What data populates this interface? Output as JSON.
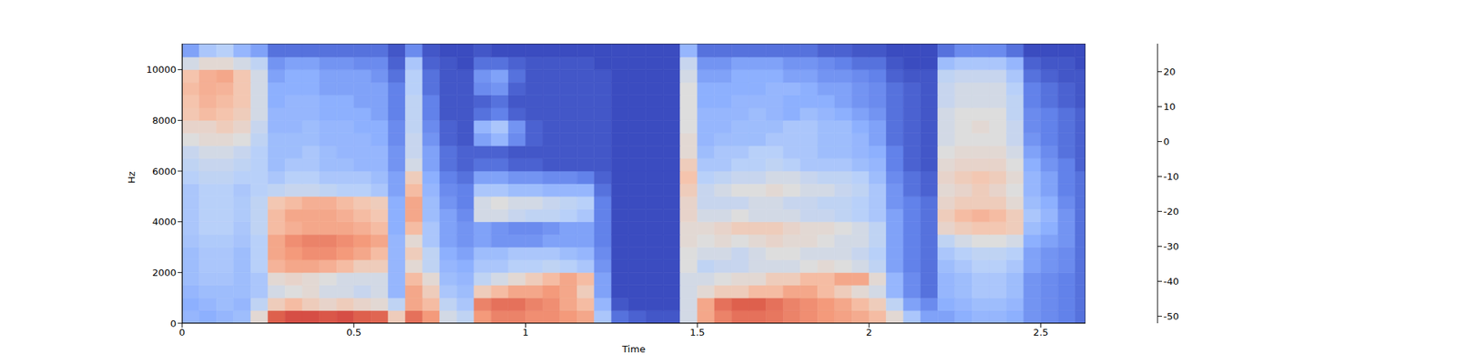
{
  "chart_data": {
    "type": "heatmap",
    "xlabel": "Time",
    "ylabel": "Hz",
    "xlim": [
      0,
      2.63
    ],
    "ylim": [
      0,
      11025
    ],
    "xticks": [
      0,
      0.5,
      1,
      1.5,
      2,
      2.5
    ],
    "yticks": [
      0,
      2000,
      4000,
      6000,
      8000,
      10000
    ],
    "x_edges": [
      0,
      0.05,
      0.1,
      0.15,
      0.2,
      0.25,
      0.3,
      0.35,
      0.4,
      0.45,
      0.5,
      0.55,
      0.6,
      0.65,
      0.7,
      0.75,
      0.8,
      0.85,
      0.9,
      0.95,
      1,
      1.05,
      1.1,
      1.15,
      1.2,
      1.25,
      1.3,
      1.35,
      1.4,
      1.45,
      1.5,
      1.55,
      1.6,
      1.65,
      1.7,
      1.75,
      1.8,
      1.85,
      1.9,
      1.95,
      2,
      2.05,
      2.1,
      2.15,
      2.2,
      2.25,
      2.3,
      2.35,
      2.4,
      2.45,
      2.5,
      2.55,
      2.6,
      2.65
    ],
    "y_edges": [
      0,
      500,
      1000,
      1500,
      2000,
      2500,
      3000,
      3500,
      4000,
      4500,
      5000,
      5500,
      6000,
      6500,
      7000,
      7500,
      8000,
      8500,
      9000,
      9500,
      10000,
      10500,
      11025
    ],
    "z": [
      [
        -30,
        -32,
        -30,
        -28,
        -10,
        18,
        20,
        20,
        19,
        20,
        18,
        17,
        -5,
        15,
        8,
        -15,
        -20,
        8,
        12,
        12,
        10,
        10,
        8,
        5,
        -25,
        -45,
        -48,
        -50,
        -50,
        -15,
        5,
        12,
        15,
        15,
        14,
        12,
        10,
        8,
        6,
        4,
        0,
        -10,
        -25,
        -35,
        -35,
        -32,
        -30,
        -30,
        -32,
        -38,
        -40,
        -42,
        -45
      ],
      [
        -32,
        -30,
        -28,
        -30,
        -20,
        -5,
        0,
        -5,
        -8,
        -5,
        -8,
        -10,
        -20,
        5,
        0,
        -20,
        -25,
        12,
        15,
        15,
        12,
        10,
        5,
        0,
        -30,
        -50,
        -52,
        -52,
        -52,
        -15,
        5,
        15,
        18,
        18,
        15,
        12,
        10,
        8,
        5,
        0,
        -5,
        -20,
        -35,
        -40,
        -32,
        -30,
        -28,
        -28,
        -30,
        -38,
        -40,
        -42,
        -45
      ],
      [
        -30,
        -28,
        -28,
        -28,
        -25,
        -15,
        -12,
        -10,
        -15,
        -15,
        -18,
        -15,
        -30,
        5,
        -5,
        -25,
        -28,
        -5,
        0,
        5,
        5,
        8,
        5,
        -5,
        -35,
        -52,
        -52,
        -52,
        -52,
        -15,
        -10,
        -5,
        -5,
        0,
        0,
        5,
        5,
        0,
        -5,
        -10,
        -15,
        -30,
        -40,
        -45,
        -30,
        -28,
        -25,
        -25,
        -28,
        -38,
        -40,
        -42,
        -45
      ],
      [
        -28,
        -26,
        -26,
        -28,
        -25,
        -10,
        -8,
        -10,
        -12,
        -15,
        -15,
        -15,
        -30,
        0,
        -10,
        -28,
        -30,
        -20,
        -15,
        -10,
        -5,
        0,
        5,
        0,
        -35,
        -52,
        -52,
        -52,
        -52,
        -15,
        -15,
        -12,
        -10,
        -10,
        -5,
        -5,
        0,
        0,
        5,
        5,
        -10,
        -30,
        -40,
        -45,
        -30,
        -28,
        -25,
        -25,
        -28,
        -38,
        -40,
        -42,
        -45
      ],
      [
        -28,
        -25,
        -25,
        -28,
        -22,
        2,
        5,
        5,
        3,
        0,
        -5,
        -5,
        -30,
        -10,
        -20,
        -30,
        -32,
        -25,
        -25,
        -22,
        -22,
        -20,
        -22,
        -25,
        -38,
        -52,
        -52,
        -52,
        -52,
        -12,
        -20,
        -18,
        -18,
        -15,
        -15,
        -15,
        -12,
        -10,
        -12,
        -15,
        -20,
        -35,
        -42,
        -45,
        -28,
        -25,
        -22,
        -22,
        -25,
        -35,
        -38,
        -40,
        -45
      ],
      [
        -28,
        -25,
        -25,
        -28,
        -22,
        5,
        8,
        10,
        10,
        8,
        5,
        0,
        -30,
        -5,
        -20,
        -32,
        -35,
        -28,
        -28,
        -25,
        -25,
        -25,
        -28,
        -30,
        -40,
        -52,
        -52,
        -52,
        -52,
        -12,
        -15,
        -15,
        -18,
        -15,
        -12,
        -12,
        -15,
        -15,
        -15,
        -18,
        -22,
        -35,
        -42,
        -45,
        -25,
        -22,
        -20,
        -20,
        -22,
        -35,
        -38,
        -40,
        -45
      ],
      [
        -26,
        -24,
        -24,
        -26,
        -22,
        5,
        10,
        12,
        12,
        10,
        8,
        5,
        -30,
        -10,
        -25,
        -35,
        -38,
        -35,
        -38,
        -38,
        -38,
        -35,
        -35,
        -35,
        -42,
        -52,
        -52,
        -52,
        -52,
        -10,
        -12,
        -10,
        -12,
        -10,
        -8,
        -10,
        -10,
        -12,
        -15,
        -15,
        -20,
        -35,
        -42,
        -45,
        -20,
        -15,
        -12,
        -12,
        -15,
        -32,
        -35,
        -38,
        -45
      ],
      [
        -25,
        -22,
        -22,
        -25,
        -20,
        0,
        3,
        5,
        5,
        5,
        3,
        0,
        -32,
        0,
        -25,
        -35,
        -38,
        -35,
        -38,
        -40,
        -40,
        -38,
        -35,
        -35,
        -42,
        -52,
        -52,
        -52,
        -52,
        -10,
        -10,
        -8,
        -5,
        -5,
        -5,
        -8,
        -10,
        -10,
        -12,
        -15,
        -20,
        -35,
        -42,
        -45,
        -8,
        -5,
        -3,
        -3,
        -5,
        -28,
        -32,
        -38,
        -45
      ],
      [
        -25,
        -22,
        -22,
        -24,
        -20,
        0,
        5,
        5,
        5,
        3,
        0,
        -3,
        -32,
        5,
        -28,
        -35,
        -40,
        -15,
        -15,
        -18,
        -20,
        -20,
        -22,
        -25,
        -42,
        -52,
        -52,
        -52,
        -52,
        -8,
        -15,
        -15,
        -12,
        -15,
        -15,
        -15,
        -18,
        -18,
        -20,
        -22,
        -25,
        -35,
        -42,
        -45,
        -5,
        0,
        2,
        0,
        -5,
        -25,
        -30,
        -38,
        -45
      ],
      [
        -25,
        -22,
        -22,
        -24,
        -20,
        -3,
        0,
        3,
        3,
        0,
        -3,
        -5,
        -32,
        5,
        -28,
        -38,
        -42,
        -15,
        -12,
        -15,
        -15,
        -18,
        -20,
        -22,
        -42,
        -52,
        -52,
        -52,
        -52,
        -8,
        -18,
        -18,
        -18,
        -15,
        -15,
        -18,
        -18,
        -20,
        -20,
        -22,
        -25,
        -38,
        -42,
        -45,
        -8,
        -5,
        -5,
        -5,
        -10,
        -28,
        -32,
        -40,
        -45
      ],
      [
        -25,
        -22,
        -22,
        -25,
        -22,
        -20,
        -18,
        -18,
        -20,
        -22,
        -22,
        -25,
        -35,
        0,
        -30,
        -40,
        -42,
        -25,
        -25,
        -28,
        -28,
        -30,
        -30,
        -30,
        -45,
        -52,
        -52,
        -52,
        -52,
        -5,
        -18,
        -15,
        -12,
        -12,
        -10,
        -12,
        -15,
        -15,
        -18,
        -20,
        -25,
        -38,
        -45,
        -48,
        -10,
        -8,
        -5,
        -8,
        -12,
        -30,
        -35,
        -42,
        -45
      ],
      [
        -22,
        -20,
        -20,
        -22,
        -22,
        -25,
        -22,
        -22,
        -25,
        -25,
        -25,
        -28,
        -35,
        -5,
        -32,
        -42,
        -45,
        -35,
        -35,
        -38,
        -38,
        -40,
        -40,
        -42,
        -48,
        -52,
        -52,
        -52,
        -52,
        -2,
        -22,
        -20,
        -18,
        -18,
        -15,
        -15,
        -18,
        -20,
        -20,
        -22,
        -28,
        -40,
        -45,
        -48,
        -8,
        -5,
        -3,
        -5,
        -10,
        -30,
        -35,
        -42,
        -45
      ],
      [
        -20,
        -18,
        -18,
        -20,
        -22,
        -28,
        -25,
        -25,
        -28,
        -28,
        -30,
        -30,
        -38,
        -15,
        -35,
        -45,
        -48,
        -45,
        -45,
        -48,
        -48,
        -50,
        -50,
        -50,
        -50,
        -52,
        -52,
        -52,
        -52,
        -5,
        -25,
        -25,
        -22,
        -22,
        -20,
        -22,
        -25,
        -25,
        -25,
        -28,
        -30,
        -42,
        -48,
        -50,
        -10,
        -8,
        -8,
        -8,
        -12,
        -32,
        -38,
        -42,
        -48
      ],
      [
        -18,
        -15,
        -15,
        -18,
        -22,
        -28,
        -28,
        -25,
        -28,
        -30,
        -30,
        -30,
        -38,
        -18,
        -35,
        -45,
        -48,
        -48,
        -48,
        -50,
        -50,
        -50,
        -50,
        -50,
        -50,
        -52,
        -52,
        -52,
        -52,
        -10,
        -28,
        -25,
        -25,
        -22,
        -22,
        -25,
        -25,
        -28,
        -28,
        -30,
        -32,
        -42,
        -48,
        -50,
        -12,
        -10,
        -10,
        -10,
        -15,
        -35,
        -40,
        -45,
        -48
      ],
      [
        -12,
        -10,
        -10,
        -12,
        -20,
        -28,
        -28,
        -28,
        -30,
        -30,
        -30,
        -32,
        -40,
        -18,
        -38,
        -48,
        -50,
        -35,
        -30,
        -40,
        -48,
        -50,
        -50,
        -50,
        -50,
        -52,
        -52,
        -52,
        -52,
        -10,
        -30,
        -28,
        -28,
        -28,
        -25,
        -25,
        -25,
        -28,
        -28,
        -30,
        -35,
        -45,
        -48,
        -50,
        -15,
        -12,
        -12,
        -12,
        -18,
        -38,
        -42,
        -45,
        -48
      ],
      [
        -8,
        -8,
        -5,
        -8,
        -18,
        -30,
        -30,
        -28,
        -30,
        -30,
        -32,
        -32,
        -40,
        -20,
        -40,
        -48,
        -50,
        -30,
        -25,
        -38,
        -48,
        -50,
        -50,
        -50,
        -50,
        -52,
        -52,
        -52,
        -52,
        -12,
        -30,
        -30,
        -28,
        -28,
        -28,
        -25,
        -25,
        -28,
        -28,
        -32,
        -35,
        -45,
        -48,
        -50,
        -15,
        -12,
        -10,
        -12,
        -18,
        -40,
        -42,
        -45,
        -48
      ],
      [
        -3,
        0,
        -2,
        -5,
        -15,
        -30,
        -30,
        -30,
        -32,
        -32,
        -32,
        -35,
        -42,
        -20,
        -42,
        -50,
        -50,
        -45,
        -42,
        -48,
        -50,
        -50,
        -50,
        -50,
        -50,
        -52,
        -52,
        -52,
        -52,
        -12,
        -30,
        -30,
        -30,
        -28,
        -30,
        -32,
        -28,
        -30,
        -32,
        -35,
        -38,
        -45,
        -48,
        -50,
        -15,
        -12,
        -12,
        -12,
        -20,
        -40,
        -42,
        -45,
        -48
      ],
      [
        -2,
        2,
        0,
        -3,
        -15,
        -32,
        -30,
        -30,
        -32,
        -32,
        -35,
        -35,
        -42,
        -20,
        -42,
        -50,
        -50,
        -48,
        -45,
        -50,
        -50,
        -50,
        -50,
        -50,
        -50,
        -52,
        -52,
        -52,
        -52,
        -12,
        -32,
        -32,
        -30,
        -30,
        -30,
        -32,
        -32,
        -32,
        -35,
        -38,
        -40,
        -45,
        -48,
        -50,
        -18,
        -15,
        -15,
        -15,
        -20,
        -42,
        -45,
        -48,
        -50
      ],
      [
        0,
        3,
        2,
        -3,
        -15,
        -32,
        -32,
        -32,
        -35,
        -35,
        -35,
        -35,
        -42,
        -22,
        -45,
        -50,
        -50,
        -40,
        -38,
        -48,
        -50,
        -50,
        -50,
        -50,
        -50,
        -52,
        -52,
        -52,
        -52,
        -12,
        -32,
        -32,
        -32,
        -32,
        -30,
        -30,
        -32,
        -35,
        -35,
        -38,
        -40,
        -45,
        -48,
        -50,
        -18,
        -15,
        -15,
        -15,
        -22,
        -42,
        -45,
        -48,
        -50
      ],
      [
        -2,
        3,
        5,
        -3,
        -15,
        -35,
        -32,
        -32,
        -35,
        -35,
        -35,
        -38,
        -45,
        -22,
        -45,
        -50,
        -50,
        -38,
        -35,
        -45,
        -50,
        -50,
        -50,
        -50,
        -50,
        -52,
        -52,
        -52,
        -52,
        -15,
        -35,
        -35,
        -32,
        -32,
        -32,
        -35,
        -35,
        -38,
        -38,
        -40,
        -42,
        -48,
        -50,
        -50,
        -20,
        -18,
        -18,
        -18,
        -25,
        -45,
        -48,
        -50,
        -50
      ],
      [
        -15,
        -10,
        -10,
        -15,
        -20,
        -38,
        -35,
        -35,
        -38,
        -38,
        -40,
        -40,
        -48,
        -25,
        -48,
        -50,
        -52,
        -45,
        -45,
        -48,
        -50,
        -50,
        -50,
        -50,
        -52,
        -52,
        -52,
        -52,
        -52,
        -18,
        -38,
        -38,
        -35,
        -35,
        -35,
        -38,
        -38,
        -40,
        -42,
        -45,
        -45,
        -50,
        -52,
        -52,
        -28,
        -25,
        -25,
        -25,
        -30,
        -48,
        -50,
        -50,
        -52
      ],
      [
        -35,
        -25,
        -22,
        -30,
        -35,
        -45,
        -45,
        -45,
        -45,
        -45,
        -45,
        -45,
        -50,
        -40,
        -50,
        -52,
        -52,
        -50,
        -52,
        -52,
        -52,
        -52,
        -52,
        -52,
        -52,
        -52,
        -52,
        -52,
        -52,
        -30,
        -45,
        -45,
        -45,
        -45,
        -45,
        -45,
        -45,
        -48,
        -48,
        -50,
        -50,
        -52,
        -52,
        -52,
        -45,
        -40,
        -40,
        -40,
        -45,
        -52,
        -52,
        -52,
        -52
      ]
    ],
    "colorbar": {
      "range": [
        -52,
        28
      ],
      "ticks": [
        -50,
        -40,
        -30,
        -20,
        -10,
        0,
        10,
        20
      ]
    }
  }
}
